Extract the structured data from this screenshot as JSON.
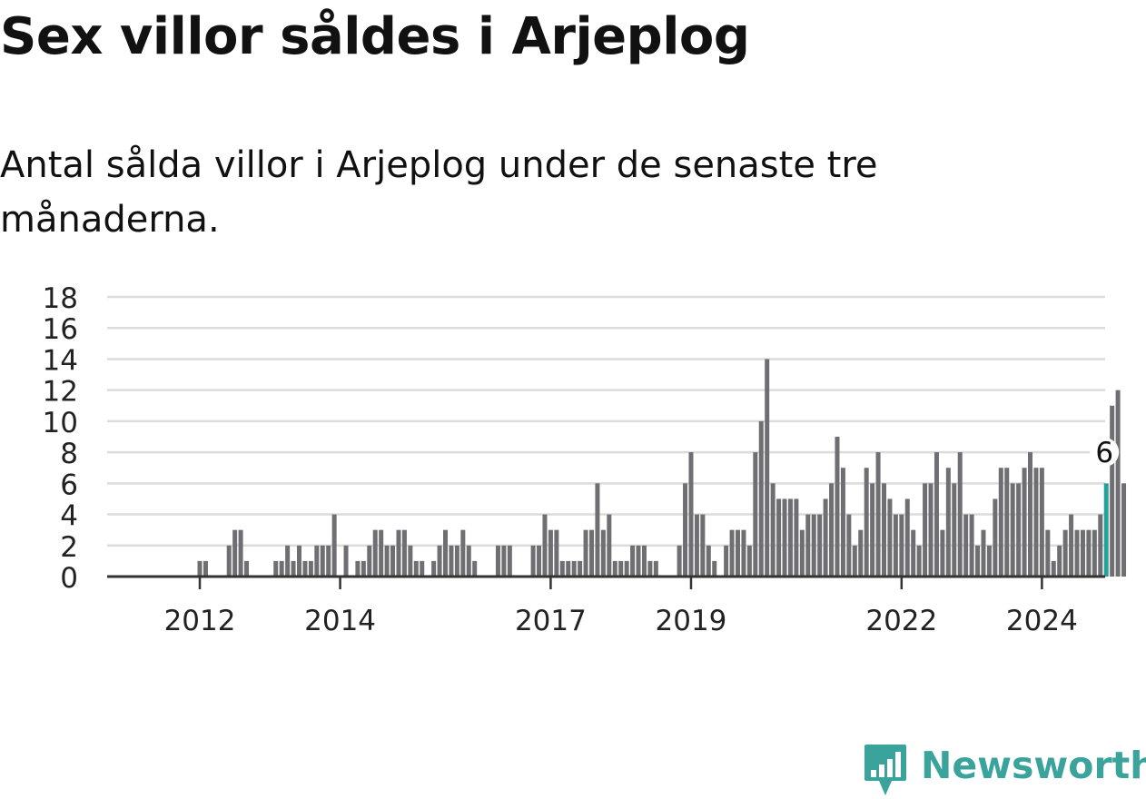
{
  "title": "Sex villor såldes i Arjeplog",
  "subtitle": "Antal sålda villor i Arjeplog under de senaste tre månaderna.",
  "brand": {
    "name": "Newsworthy",
    "color": "#3aa39b",
    "icon": "newsworthy-logo-icon"
  },
  "colors": {
    "bar": "#6f6e72",
    "highlight": "#22a39a",
    "grid": "#dcdcdc",
    "axis": "#333333"
  },
  "chart_data": {
    "type": "bar",
    "title": "",
    "xlabel": "",
    "ylabel": "",
    "ylim": [
      0,
      18
    ],
    "yticks": [
      0,
      2,
      4,
      6,
      8,
      10,
      12,
      14,
      16,
      18
    ],
    "xticks": [
      {
        "label": "2012",
        "index": 8
      },
      {
        "label": "2014",
        "index": 32
      },
      {
        "label": "2017",
        "index": 68
      },
      {
        "label": "2019",
        "index": 92
      },
      {
        "label": "2022",
        "index": 128
      },
      {
        "label": "2024",
        "index": 152
      }
    ],
    "grid": true,
    "highlight_index": 163,
    "highlight_label": "6",
    "values": [
      0,
      0,
      0,
      0,
      0,
      0,
      0,
      0,
      1,
      1,
      0,
      0,
      0,
      2,
      3,
      3,
      1,
      0,
      0,
      0,
      0,
      1,
      1,
      2,
      1,
      2,
      1,
      1,
      2,
      2,
      2,
      4,
      0,
      2,
      0,
      1,
      1,
      2,
      3,
      3,
      2,
      2,
      3,
      3,
      2,
      1,
      1,
      0,
      1,
      2,
      3,
      2,
      2,
      3,
      2,
      1,
      0,
      0,
      0,
      2,
      2,
      2,
      0,
      0,
      0,
      2,
      2,
      4,
      3,
      3,
      1,
      1,
      1,
      1,
      3,
      3,
      6,
      3,
      4,
      1,
      1,
      1,
      2,
      2,
      2,
      1,
      1,
      0,
      0,
      0,
      2,
      6,
      8,
      4,
      4,
      2,
      1,
      0,
      2,
      3,
      3,
      3,
      2,
      8,
      10,
      14,
      6,
      5,
      5,
      5,
      5,
      3,
      4,
      4,
      4,
      5,
      6,
      9,
      7,
      4,
      2,
      3,
      7,
      6,
      8,
      6,
      5,
      4,
      4,
      5,
      3,
      2,
      6,
      6,
      8,
      3,
      7,
      6,
      8,
      4,
      4,
      2,
      3,
      2,
      5,
      7,
      7,
      6,
      6,
      7,
      8,
      7,
      7,
      3,
      1,
      2,
      3,
      4,
      3,
      3,
      3,
      3,
      4,
      6,
      11,
      12,
      6
    ]
  }
}
